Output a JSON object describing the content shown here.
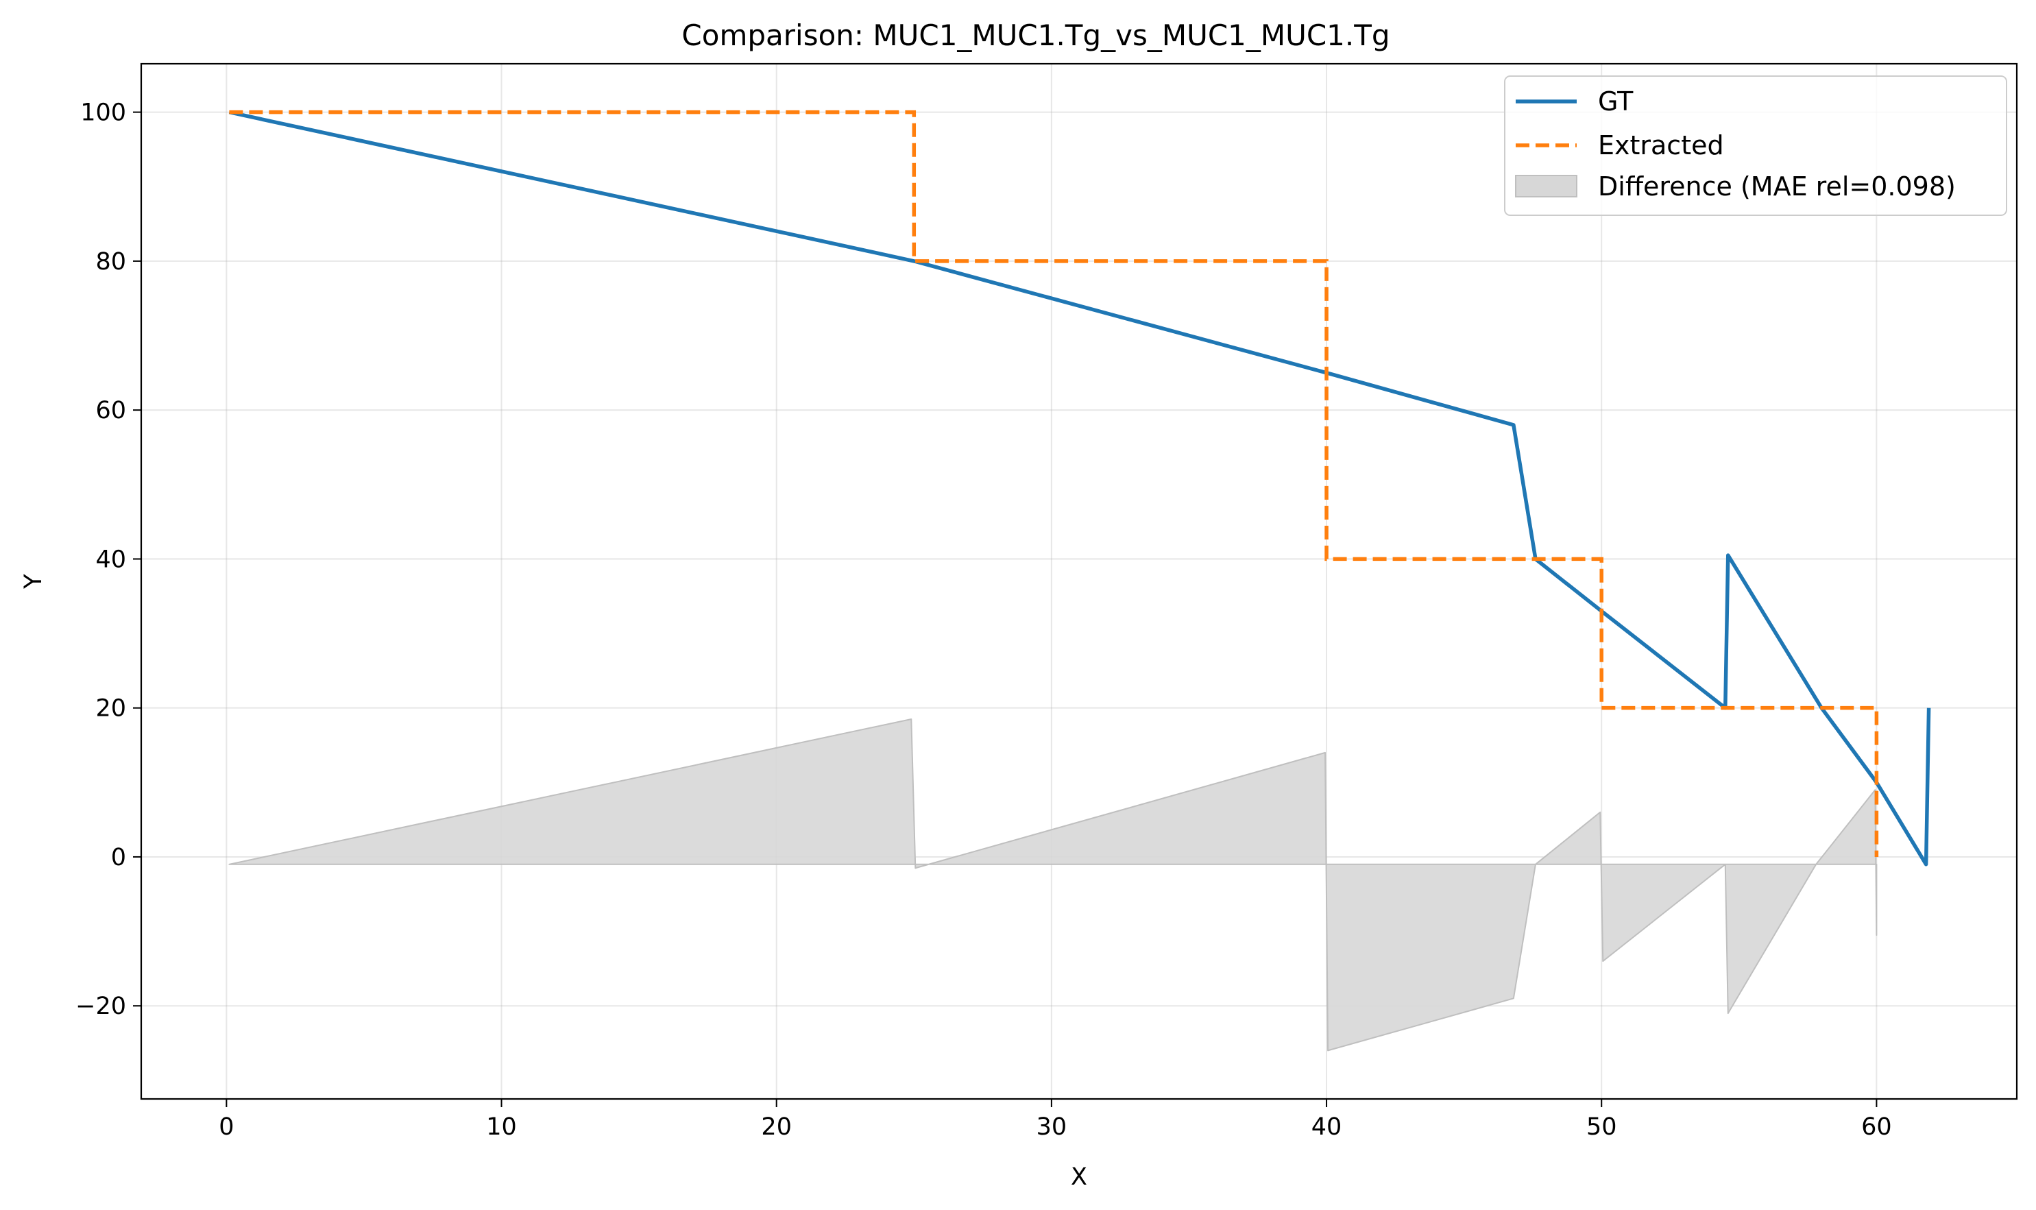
{
  "chart_data": {
    "type": "line",
    "title": "Comparison: MUC1_MUC1.Tg_vs_MUC1_MUC1.Tg",
    "xlabel": "X",
    "ylabel": "Y",
    "xlim": [
      -3.1,
      65.1
    ],
    "ylim": [
      -32.5,
      106.5
    ],
    "xticks": [
      0,
      10,
      20,
      30,
      40,
      50,
      60
    ],
    "yticks": [
      -20,
      0,
      20,
      40,
      60,
      80,
      100
    ],
    "grid": true,
    "legend_position": "top-right",
    "series": [
      {
        "name": "GT",
        "style": "solid",
        "color": "#1f77b4",
        "x": [
          0.1,
          25,
          40,
          46.8,
          47.6,
          50,
          54.5,
          54.6,
          58,
          60,
          61.8,
          61.9
        ],
        "y": [
          100,
          80,
          65,
          58,
          40,
          33,
          20,
          40.5,
          20,
          10,
          -1,
          20
        ]
      },
      {
        "name": "Extracted",
        "style": "dashed",
        "color": "#ff7f0e",
        "x": [
          0.1,
          25,
          25,
          40,
          40,
          50,
          50,
          60,
          60
        ],
        "y": [
          100,
          100,
          80,
          80,
          40,
          40,
          20,
          20,
          0
        ]
      },
      {
        "name": "Difference (MAE rel=0.098)",
        "style": "fill",
        "color": "#d7d7d7",
        "x": [
          0.1,
          24.9,
          25.05,
          39.95,
          40.05,
          46.8,
          47.6,
          49.95,
          50.05,
          54.5,
          54.6,
          57.8,
          59.95,
          60.0
        ],
        "y": [
          -1,
          18.5,
          -1.5,
          14,
          -26,
          -19,
          -1,
          6,
          -14,
          -1,
          -21,
          -1,
          9,
          -10.5
        ],
        "baseline": -1
      }
    ]
  }
}
